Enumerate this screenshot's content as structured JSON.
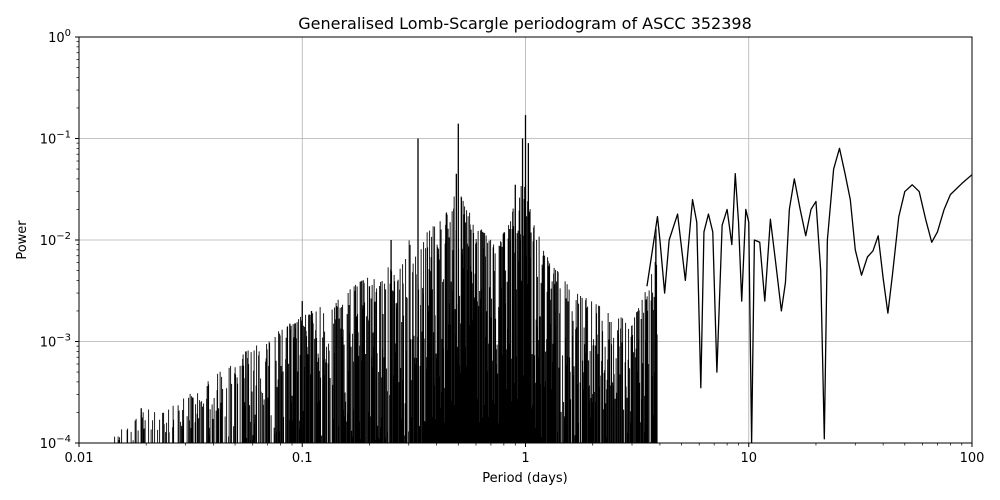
{
  "chart_data": {
    "type": "line",
    "title": "Generalised Lomb-Scargle periodogram of ASCC 352398",
    "xlabel": "Period (days)",
    "ylabel": "Power",
    "xscale": "log",
    "yscale": "log",
    "xlim": [
      0.01,
      100
    ],
    "ylim": [
      0.0001,
      1
    ],
    "grid": true,
    "line_color": "#000000",
    "x_ticks": [
      {
        "value": 0.01,
        "label": "0.01"
      },
      {
        "value": 0.1,
        "label": "0.1"
      },
      {
        "value": 1,
        "label": "1"
      },
      {
        "value": 10,
        "label": "10"
      },
      {
        "value": 100,
        "label": "100"
      }
    ],
    "y_ticks": [
      {
        "value": 0.0001,
        "base": "10",
        "exp": "−4"
      },
      {
        "value": 0.001,
        "base": "10",
        "exp": "−3"
      },
      {
        "value": 0.01,
        "base": "10",
        "exp": "−2"
      },
      {
        "value": 0.1,
        "base": "10",
        "exp": "−1"
      },
      {
        "value": 1,
        "base": "10",
        "exp": "0"
      }
    ],
    "series": [
      {
        "x": [
          0.01,
          0.012,
          0.014,
          0.016,
          0.018,
          0.019,
          0.02,
          0.022,
          0.025,
          0.028,
          0.03,
          0.033,
          0.035,
          0.038,
          0.04,
          0.045,
          0.05,
          0.055,
          0.06,
          0.065,
          0.07,
          0.075,
          0.08,
          0.09,
          0.1,
          0.11,
          0.12,
          0.13,
          0.15,
          0.17,
          0.2,
          0.22,
          0.25,
          0.28,
          0.3,
          0.33,
          0.36,
          0.4,
          0.45,
          0.49,
          0.5,
          0.51,
          0.55,
          0.6,
          0.65,
          0.7,
          0.75,
          0.8,
          0.85,
          0.9,
          0.95,
          0.98,
          1.0,
          1.02,
          1.05,
          1.1,
          1.2,
          1.3,
          1.5,
          1.7,
          2.0,
          2.3,
          2.6,
          3.0,
          3.5,
          3.9,
          4.0,
          4.2,
          4.4,
          4.8,
          5.2,
          5.6,
          5.85,
          6.1,
          6.3,
          6.6,
          6.9,
          7.2,
          7.6,
          8.0,
          8.4,
          8.7,
          9.0,
          9.3,
          9.7,
          10.0,
          10.3,
          10.6,
          11.2,
          11.8,
          12.5,
          13.2,
          14.0,
          14.6,
          15.2,
          16.0,
          17.0,
          18.0,
          19.0,
          20.0,
          21.0,
          21.8,
          22.5,
          24.0,
          25.5,
          27.0,
          28.5,
          30.0,
          32.0,
          34.0,
          36.0,
          38.0,
          40.0,
          42.0,
          44.0,
          47.0,
          50.0,
          54.0,
          58.0,
          62.0,
          66.0,
          70.0,
          75.0,
          80.0,
          90.0,
          100.0
        ],
        "y": [
          0.0001,
          0.00011,
          0.00013,
          0.00015,
          0.00018,
          0.00019,
          0.00022,
          0.0002,
          0.00021,
          0.00026,
          0.00031,
          0.0003,
          0.00035,
          0.00041,
          0.00045,
          0.00055,
          0.0006,
          0.0008,
          0.00085,
          0.001,
          0.00095,
          0.0012,
          0.0013,
          0.0015,
          0.0018,
          0.0019,
          0.0022,
          0.002,
          0.0028,
          0.0035,
          0.0045,
          0.0038,
          0.006,
          0.0055,
          0.01,
          0.008,
          0.012,
          0.015,
          0.02,
          0.03,
          0.035,
          0.028,
          0.02,
          0.015,
          0.012,
          0.01,
          0.008,
          0.012,
          0.015,
          0.025,
          0.03,
          0.06,
          0.045,
          0.03,
          0.02,
          0.015,
          0.008,
          0.006,
          0.004,
          0.003,
          0.0025,
          0.002,
          0.0018,
          0.0015,
          0.0035,
          0.017,
          0.01,
          0.003,
          0.01,
          0.018,
          0.004,
          0.025,
          0.015,
          0.00035,
          0.012,
          0.018,
          0.012,
          0.0005,
          0.014,
          0.02,
          0.009,
          0.045,
          0.015,
          0.0025,
          0.02,
          0.015,
          0.0001,
          0.01,
          0.0095,
          0.0025,
          0.016,
          0.006,
          0.002,
          0.0038,
          0.02,
          0.04,
          0.02,
          0.011,
          0.02,
          0.024,
          0.005,
          0.00011,
          0.01,
          0.05,
          0.08,
          0.045,
          0.025,
          0.008,
          0.0045,
          0.0068,
          0.0078,
          0.011,
          0.0042,
          0.0019,
          0.0045,
          0.017,
          0.03,
          0.035,
          0.03,
          0.016,
          0.0095,
          0.012,
          0.02,
          0.028,
          0.036,
          0.044
        ]
      }
    ],
    "peaks": [
      {
        "x": 0.019,
        "y": 0.00022
      },
      {
        "x": 0.056,
        "y": 0.0008
      },
      {
        "x": 0.088,
        "y": 0.0015
      },
      {
        "x": 0.1,
        "y": 0.0025
      },
      {
        "x": 0.11,
        "y": 0.002
      },
      {
        "x": 0.2,
        "y": 0.0035
      },
      {
        "x": 0.25,
        "y": 0.01
      },
      {
        "x": 0.33,
        "y": 0.1
      },
      {
        "x": 0.5,
        "y": 0.14
      },
      {
        "x": 0.49,
        "y": 0.045
      },
      {
        "x": 0.44,
        "y": 0.01
      },
      {
        "x": 0.97,
        "y": 0.1
      },
      {
        "x": 1.0,
        "y": 0.17
      },
      {
        "x": 1.03,
        "y": 0.09
      },
      {
        "x": 0.9,
        "y": 0.035
      },
      {
        "x": 1.35,
        "y": 0.002
      }
    ]
  }
}
